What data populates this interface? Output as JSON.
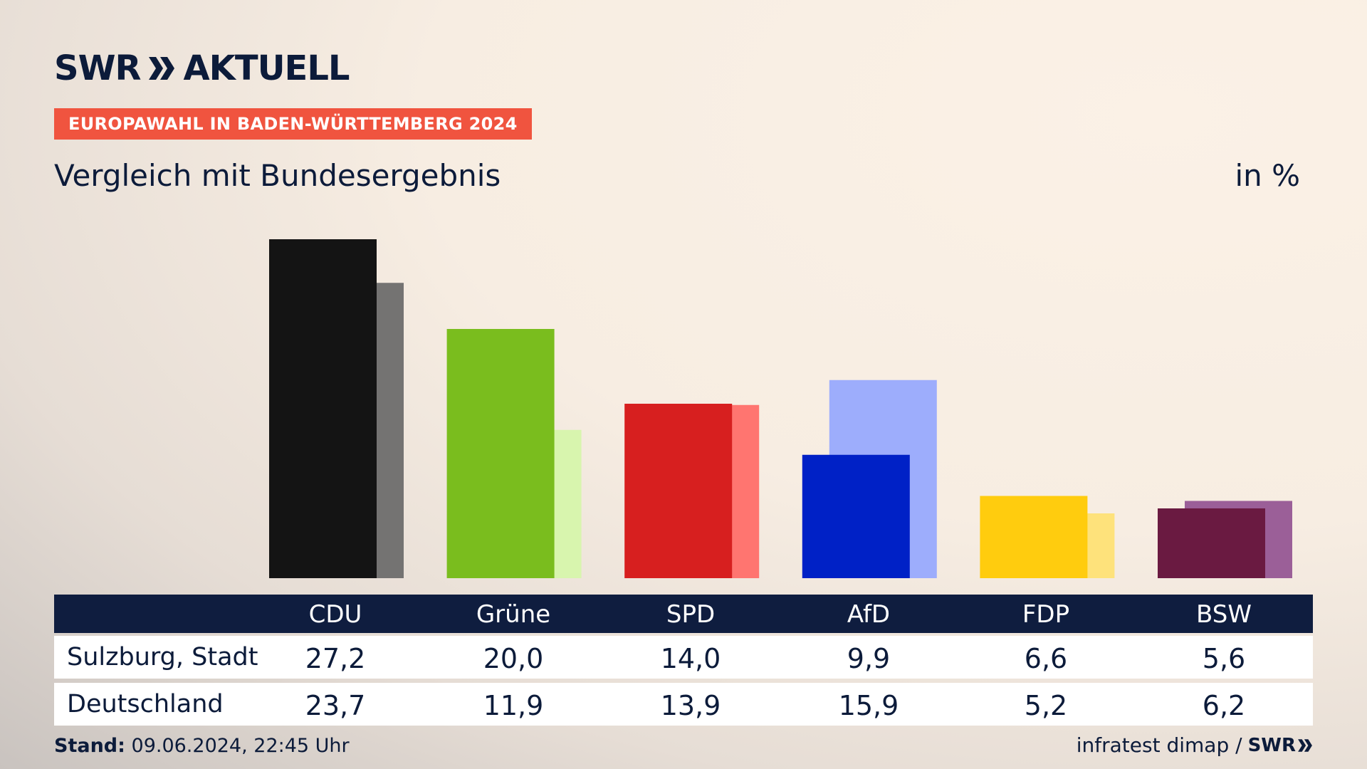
{
  "header": {
    "logo_swr": "SWR",
    "logo_aktuell": "AKTUELL",
    "tag": "EUROPAWAHL IN BADEN-WÜRTTEMBERG 2024",
    "subtitle": "Vergleich mit Bundesergebnis",
    "unit": "in %"
  },
  "colors": {
    "navy": "#0f1d3f",
    "tag": "#f0543f"
  },
  "chart_data": {
    "type": "bar",
    "categories": [
      "CDU",
      "Grüne",
      "SPD",
      "AfD",
      "FDP",
      "BSW"
    ],
    "series": [
      {
        "name": "Sulzburg, Stadt",
        "values": [
          27.2,
          20.0,
          14.0,
          9.9,
          6.6,
          5.6
        ]
      },
      {
        "name": "Deutschland",
        "values": [
          23.7,
          11.9,
          13.9,
          15.9,
          5.2,
          6.2
        ]
      }
    ],
    "primary_colors": [
      "#141414",
      "#7abd1e",
      "#d71f1f",
      "#0021c6",
      "#ffcc0e",
      "#6a1a41"
    ],
    "secondary_colors": [
      "#747372",
      "#d8f5ae",
      "#ff7570",
      "#9dadfc",
      "#fee27b",
      "#9b5f98"
    ],
    "ylim": [
      0,
      27.2
    ]
  },
  "table": {
    "header": [
      "CDU",
      "Grüne",
      "SPD",
      "AfD",
      "FDP",
      "BSW"
    ],
    "rows": [
      {
        "label": "Sulzburg, Stadt",
        "values": [
          "27,2",
          "20,0",
          "14,0",
          "9,9",
          "6,6",
          "5,6"
        ]
      },
      {
        "label": "Deutschland",
        "values": [
          "23,7",
          "11,9",
          "13,9",
          "15,9",
          "5,2",
          "6,2"
        ]
      }
    ]
  },
  "footer": {
    "stand_label": "Stand:",
    "stand_value": "09.06.2024, 22:45 Uhr",
    "source": "infratest dimap /",
    "source_logo": "SWR"
  }
}
